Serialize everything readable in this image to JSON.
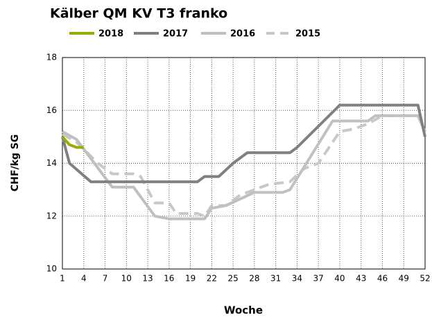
{
  "chart_data": {
    "type": "line",
    "title": "Kälber QM KV T3 franko",
    "x_label": "Woche",
    "y_label": "CHF/kg SG",
    "xlim": [
      1,
      52
    ],
    "xticks": [
      1,
      4,
      7,
      10,
      13,
      16,
      19,
      22,
      25,
      28,
      31,
      34,
      37,
      40,
      43,
      46,
      49,
      52
    ],
    "ylim": [
      10,
      18
    ],
    "yticks": [
      10,
      12,
      14,
      16,
      18
    ],
    "grid": true,
    "legend": "top",
    "series": [
      {
        "name": "2018",
        "color": "#9aaa00",
        "dash": false,
        "x": [
          1,
          2,
          3,
          4
        ],
        "values": [
          15.0,
          14.7,
          14.6,
          14.6
        ]
      },
      {
        "name": "2017",
        "color": "#808080",
        "dash": false,
        "x": [
          1,
          2,
          5,
          20,
          21,
          23,
          25,
          27,
          33,
          34,
          40,
          51,
          52
        ],
        "values": [
          15.0,
          14.0,
          13.3,
          13.3,
          13.5,
          13.5,
          14.0,
          14.4,
          14.4,
          14.6,
          16.2,
          16.2,
          15.0
        ]
      },
      {
        "name": "2016",
        "color": "#c0c0c0",
        "dash": false,
        "x": [
          1,
          3,
          8,
          11,
          14,
          16,
          21,
          22,
          24,
          28,
          32,
          33,
          39,
          44,
          45,
          51,
          52
        ],
        "values": [
          15.2,
          14.9,
          13.1,
          13.1,
          12.0,
          11.9,
          11.9,
          12.3,
          12.4,
          12.9,
          12.9,
          13.0,
          15.6,
          15.6,
          15.8,
          15.8,
          15.2
        ]
      },
      {
        "name": "2015",
        "color": "#c8c8c8",
        "dash": true,
        "x": [
          1,
          3,
          6,
          8,
          11,
          12,
          14,
          16,
          17,
          20,
          21,
          22,
          24,
          26,
          28,
          30,
          33,
          35,
          37,
          40,
          42,
          44,
          46,
          51,
          52
        ],
        "values": [
          15.1,
          14.8,
          14.0,
          13.6,
          13.6,
          13.5,
          12.5,
          12.5,
          12.1,
          12.1,
          12.0,
          12.4,
          12.4,
          12.8,
          13.0,
          13.2,
          13.3,
          13.8,
          14.0,
          15.2,
          15.3,
          15.5,
          15.8,
          15.8,
          15.4
        ]
      }
    ]
  }
}
